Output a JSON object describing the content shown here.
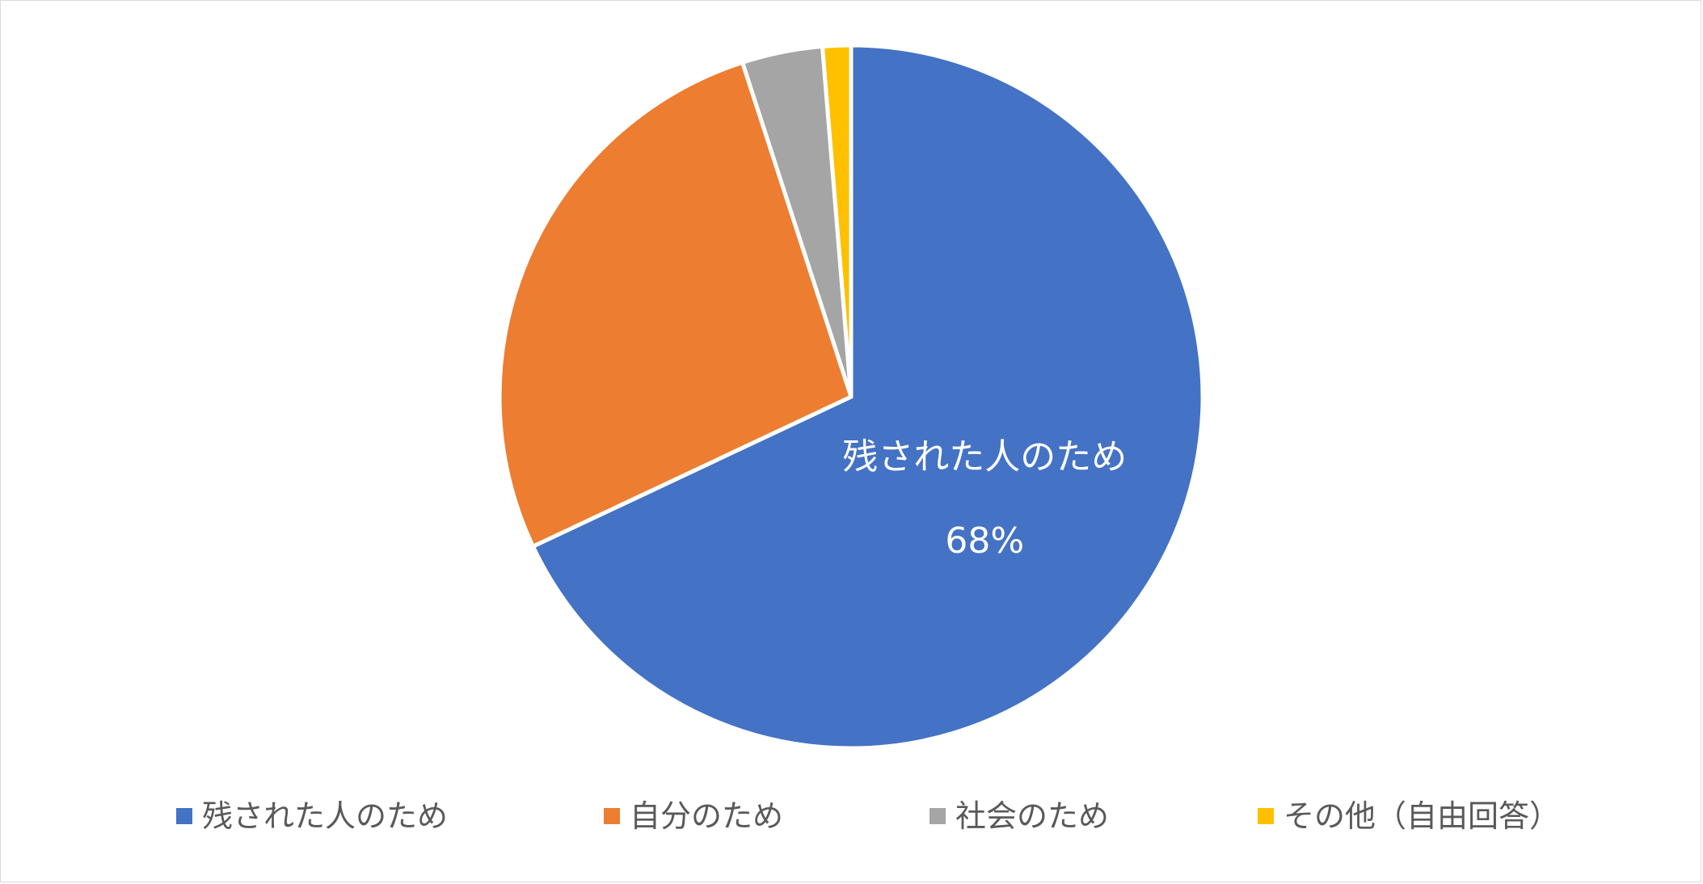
{
  "chart_data": {
    "type": "pie",
    "categories": [
      "残された人のため",
      "自分のため",
      "社会のため",
      "その他（自由回答）"
    ],
    "values": [
      68,
      27,
      3.7,
      1.3
    ],
    "unit": "%",
    "colors": [
      "#4472C4",
      "#ED7D31",
      "#A5A5A5",
      "#FFC000"
    ],
    "start_angle": "12 o'clock",
    "direction": "clockwise",
    "data_labels": [
      {
        "category": "残された人のため",
        "name": "残された人のため",
        "value_text": "68%"
      }
    ],
    "legend_position": "bottom"
  }
}
